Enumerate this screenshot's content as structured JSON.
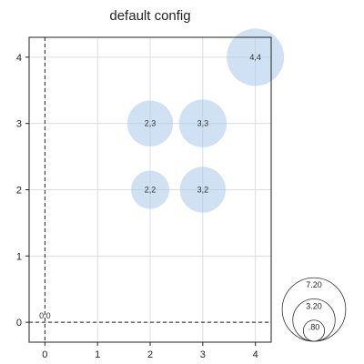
{
  "chart_data": {
    "type": "scatter",
    "title": "default config",
    "xlabel": "",
    "ylabel": "",
    "xlim": [
      -0.3,
      4.3
    ],
    "ylim": [
      -0.3,
      4.3
    ],
    "x_ticks": [
      0,
      1,
      2,
      3,
      4
    ],
    "y_ticks": [
      0,
      1,
      2,
      3,
      4
    ],
    "grid": true,
    "zero_lines": "dashed",
    "points": [
      {
        "x": 0,
        "y": 0,
        "size": 0,
        "label": "0,0"
      },
      {
        "x": 2,
        "y": 2,
        "size": 3.2,
        "label": "2,2"
      },
      {
        "x": 3,
        "y": 2,
        "size": 4.6,
        "label": "3,2"
      },
      {
        "x": 2,
        "y": 3,
        "size": 4.6,
        "label": "2,3"
      },
      {
        "x": 3,
        "y": 3,
        "size": 5.0,
        "label": "3,3"
      },
      {
        "x": 4,
        "y": 4,
        "size": 7.2,
        "label": "4,4"
      }
    ],
    "bubble_color": "#a9c8ea",
    "bubble_opacity": 0.55,
    "size_legend": {
      "placement": "bottom-right",
      "entries": [
        {
          "value": 7.2,
          "label": "7.20"
        },
        {
          "value": 3.2,
          "label": "3.20"
        },
        {
          "value": 0.8,
          "label": ".80"
        }
      ]
    }
  }
}
